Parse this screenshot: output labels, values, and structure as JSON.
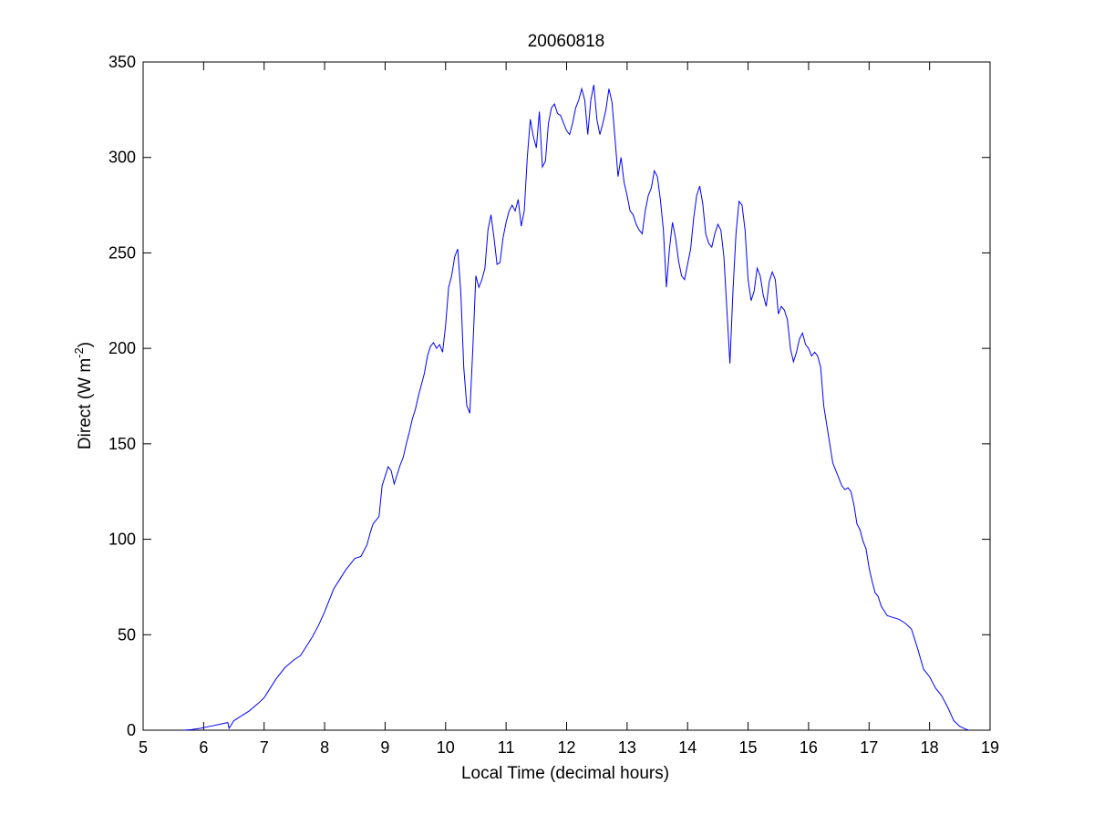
{
  "chart_data": {
    "type": "line",
    "title": "20060818",
    "xlabel": "Local Time (decimal hours)",
    "ylabel": "Direct (W m",
    "ylabel_superscript": "-2",
    "ylabel_suffix": ")",
    "xlim": [
      5,
      19
    ],
    "ylim": [
      0,
      350
    ],
    "xticks": [
      5,
      6,
      7,
      8,
      9,
      10,
      11,
      12,
      13,
      14,
      15,
      16,
      17,
      18,
      19
    ],
    "yticks": [
      0,
      50,
      100,
      150,
      200,
      250,
      300,
      350
    ],
    "grid": false,
    "line_color": "#0000ff",
    "series": [
      {
        "x": [
          5.67,
          5.8,
          5.95,
          6.1,
          6.25,
          6.4,
          6.42,
          6.5,
          6.6,
          6.75,
          6.9,
          7.0,
          7.1,
          7.2,
          7.35,
          7.5,
          7.6,
          7.7,
          7.8,
          7.9,
          8.0,
          8.1,
          8.15,
          8.25,
          8.35,
          8.45,
          8.5,
          8.6,
          8.7,
          8.75,
          8.8,
          8.85,
          8.9,
          8.95,
          9.0,
          9.05,
          9.1,
          9.15,
          9.2,
          9.25,
          9.3,
          9.35,
          9.4,
          9.45,
          9.5,
          9.55,
          9.6,
          9.65,
          9.7,
          9.75,
          9.8,
          9.85,
          9.9,
          9.95,
          10.0,
          10.05,
          10.1,
          10.15,
          10.2,
          10.25,
          10.3,
          10.35,
          10.4,
          10.45,
          10.5,
          10.55,
          10.6,
          10.65,
          10.7,
          10.75,
          10.8,
          10.85,
          10.9,
          10.95,
          11.0,
          11.05,
          11.1,
          11.15,
          11.2,
          11.25,
          11.3,
          11.35,
          11.4,
          11.45,
          11.5,
          11.55,
          11.6,
          11.65,
          11.7,
          11.75,
          11.8,
          11.85,
          11.9,
          11.95,
          12.0,
          12.05,
          12.1,
          12.15,
          12.2,
          12.25,
          12.3,
          12.35,
          12.4,
          12.45,
          12.5,
          12.55,
          12.6,
          12.65,
          12.7,
          12.75,
          12.8,
          12.85,
          12.9,
          12.95,
          13.0,
          13.05,
          13.1,
          13.15,
          13.2,
          13.25,
          13.3,
          13.35,
          13.4,
          13.45,
          13.5,
          13.55,
          13.6,
          13.65,
          13.7,
          13.75,
          13.8,
          13.85,
          13.9,
          13.95,
          14.0,
          14.05,
          14.1,
          14.15,
          14.2,
          14.25,
          14.3,
          14.35,
          14.4,
          14.45,
          14.5,
          14.55,
          14.6,
          14.65,
          14.7,
          14.75,
          14.8,
          14.85,
          14.9,
          14.95,
          15.0,
          15.05,
          15.1,
          15.15,
          15.2,
          15.25,
          15.3,
          15.35,
          15.4,
          15.45,
          15.5,
          15.55,
          15.6,
          15.65,
          15.7,
          15.75,
          15.8,
          15.85,
          15.9,
          15.95,
          16.0,
          16.05,
          16.1,
          16.15,
          16.2,
          16.25,
          16.3,
          16.35,
          16.4,
          16.45,
          16.5,
          16.55,
          16.6,
          16.65,
          16.7,
          16.75,
          16.8,
          16.85,
          16.9,
          16.95,
          17.0,
          17.05,
          17.1,
          17.15,
          17.2,
          17.3,
          17.4,
          17.5,
          17.6,
          17.7,
          17.8,
          17.9,
          18.0,
          18.1,
          18.2,
          18.3,
          18.4,
          18.5,
          18.6,
          18.65
        ],
        "y": [
          0,
          0.3,
          1,
          2,
          3,
          4,
          1,
          5,
          7,
          10,
          14,
          17,
          22,
          27,
          33,
          37,
          39,
          44,
          49,
          55,
          62,
          70,
          74,
          79,
          84,
          88,
          90,
          91,
          97,
          103,
          108,
          110,
          112,
          128,
          133,
          138,
          136,
          129,
          134,
          139,
          143,
          150,
          156,
          163,
          168,
          175,
          181,
          187,
          196,
          201,
          203,
          200,
          202,
          198,
          212,
          232,
          238,
          248,
          252,
          230,
          190,
          170,
          166,
          200,
          238,
          232,
          236,
          242,
          262,
          270,
          258,
          244,
          245,
          258,
          266,
          272,
          275,
          272,
          278,
          264,
          272,
          300,
          320,
          311,
          305,
          324,
          295,
          298,
          318,
          326,
          328,
          323,
          322,
          318,
          314,
          312,
          318,
          326,
          330,
          336,
          330,
          312,
          330,
          338,
          320,
          312,
          318,
          325,
          336,
          329,
          310,
          290,
          300,
          287,
          280,
          272,
          270,
          265,
          262,
          260,
          272,
          280,
          284,
          293,
          290,
          278,
          262,
          232,
          252,
          266,
          258,
          246,
          238,
          236,
          244,
          252,
          268,
          280,
          285,
          276,
          260,
          255,
          253,
          260,
          265,
          262,
          248,
          220,
          192,
          230,
          260,
          277,
          275,
          262,
          236,
          225,
          230,
          242,
          238,
          228,
          222,
          235,
          240,
          236,
          218,
          222,
          220,
          215,
          200,
          193,
          198,
          205,
          208,
          202,
          200,
          196,
          198,
          196,
          190,
          170,
          160,
          150,
          140,
          136,
          132,
          128,
          126,
          127,
          125,
          118,
          108,
          105,
          99,
          95,
          85,
          78,
          72,
          70,
          65,
          60,
          59,
          58,
          56,
          53,
          43,
          32,
          28,
          22,
          18,
          12,
          5,
          2,
          0.5,
          0
        ]
      }
    ]
  }
}
